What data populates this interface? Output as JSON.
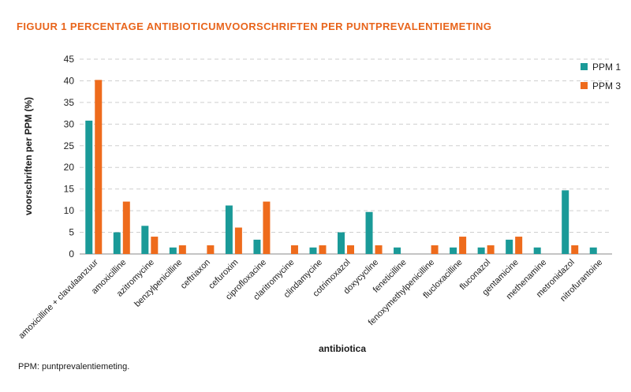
{
  "figure": {
    "title": "FIGUUR 1  PERCENTAGE ANTIBIOTICUMVOORSCHRIFTEN PER PUNTPREVALENTIEMETING",
    "footnote": "PPM: puntprevalentiemeting."
  },
  "colors": {
    "series1": "#1a9a98",
    "series2": "#ee6b1c",
    "grid": "#cfcfcf",
    "title": "#e8641b"
  },
  "chart_data": {
    "type": "bar",
    "title": "FIGUUR 1  PERCENTAGE ANTIBIOTICUMVOORSCHRIFTEN PER PUNTPREVALENTIEMETING",
    "xlabel": "antibiotica",
    "ylabel": "voorschriften per PPM (%)",
    "ylim": [
      0,
      45
    ],
    "yticks": [
      0,
      5,
      10,
      15,
      20,
      25,
      30,
      35,
      40,
      45
    ],
    "grid": true,
    "legend_position": "top-right",
    "categories": [
      "amoxicilline + clavulaanzuur",
      "amoxicilline",
      "azitromycine",
      "benzylpenicilline",
      "ceftriaxon",
      "cefuroxim",
      "ciprofloxacine",
      "claritromycine",
      "clindamycine",
      "cotrimoxazol",
      "doxycycline",
      "feneticilline",
      "fenoxymethylpenicilline",
      "flucloxacilline",
      "fluconazol",
      "gentamicine",
      "methenamine",
      "metronidazol",
      "nitrofurantoine"
    ],
    "series": [
      {
        "name": "PPM 1",
        "values": [
          30.8,
          5,
          6.5,
          1.5,
          0,
          11.2,
          3.3,
          0,
          1.5,
          5,
          9.7,
          1.5,
          0,
          1.5,
          1.5,
          3.3,
          1.5,
          14.7,
          1.5
        ]
      },
      {
        "name": "PPM 3",
        "values": [
          40.2,
          12.1,
          4,
          2,
          2,
          6.1,
          12.1,
          2,
          2,
          2,
          2,
          0,
          2,
          4,
          2,
          4,
          0,
          2,
          0
        ]
      }
    ]
  }
}
